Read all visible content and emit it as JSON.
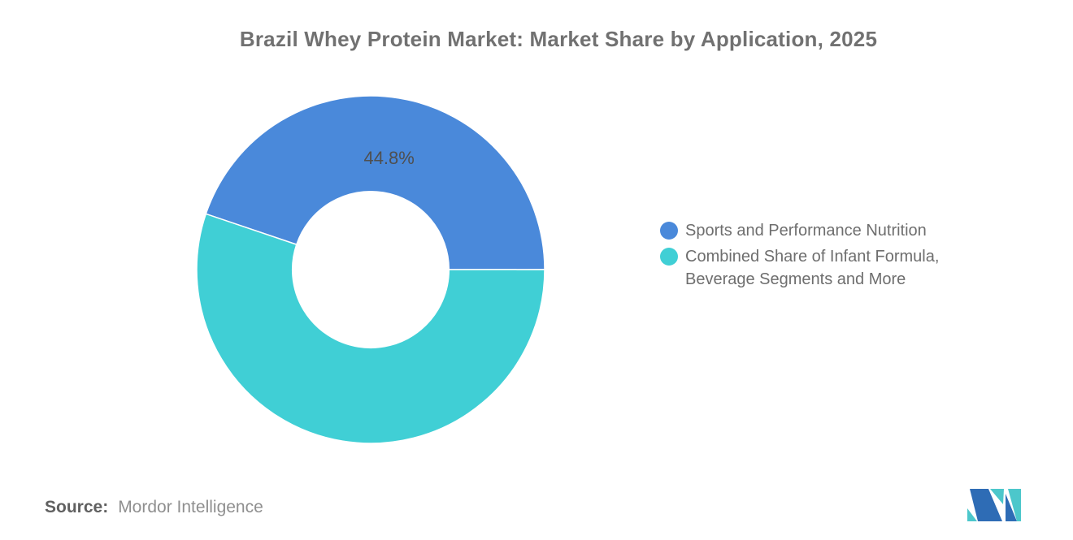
{
  "chart_data": {
    "type": "pie",
    "subtype": "donut",
    "title": "Brazil Whey Protein Market: Market Share by Application, 2025",
    "unit": "%",
    "slices": [
      {
        "label": "Sports and Performance Nutrition",
        "value": 44.8,
        "color": "#4A89DA",
        "data_label": "44.8%"
      },
      {
        "label": "Combined Share of Infant Formula, Beverage Segments and More",
        "value": 55.2,
        "color": "#40CFD5",
        "data_label": ""
      }
    ],
    "inner_radius_pct": 45,
    "start_angle_deg": -71.3,
    "legend_position": "right",
    "grid": false,
    "data_label_color": "#4f4f4f"
  },
  "source": {
    "label": "Source:",
    "value": "Mordor Intelligence"
  },
  "logo": {
    "name": "Mordor Intelligence logo",
    "blue": "#2E6CB5",
    "teal": "#4CC7CB"
  }
}
